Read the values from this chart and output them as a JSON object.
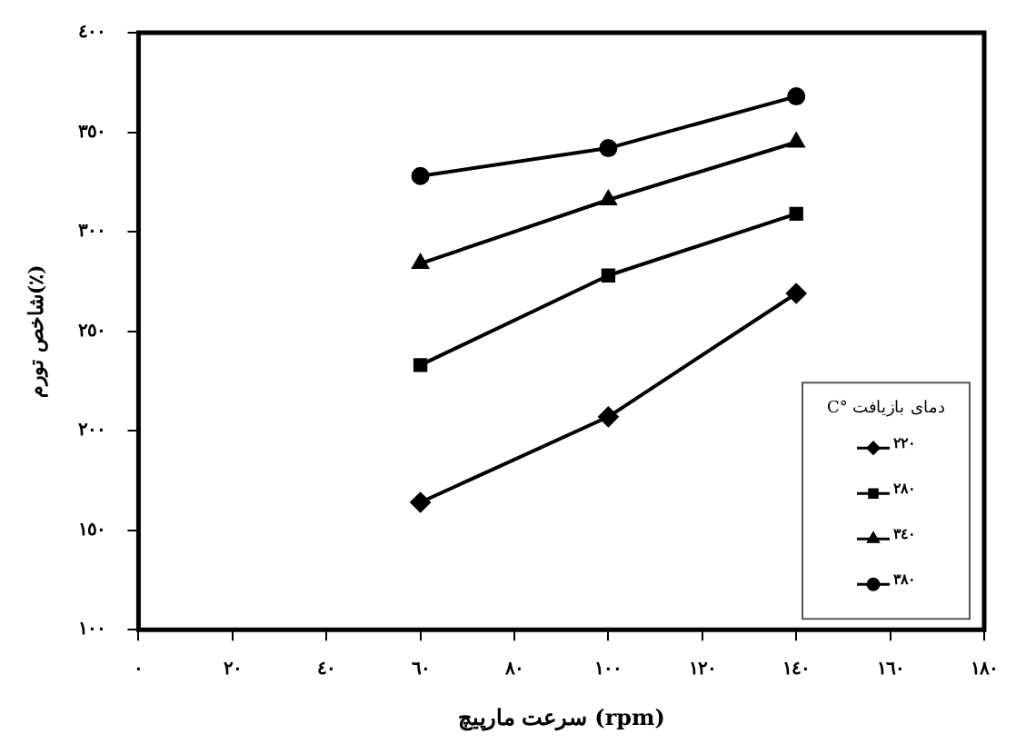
{
  "chart_data": {
    "type": "line",
    "xlabel": "سرعت مارپیچ (rpm)",
    "ylabel": "شاخص تورم(٪)",
    "legend_title": "دمای بازیافت °C",
    "legend": "bottom right",
    "grid": false,
    "x": [
      60,
      100,
      140
    ],
    "xlim": [
      0,
      180
    ],
    "xticks": [
      {
        "value": 0,
        "label": "٠"
      },
      {
        "value": 20,
        "label": "٢٠"
      },
      {
        "value": 40,
        "label": "٤٠"
      },
      {
        "value": 60,
        "label": "٦٠"
      },
      {
        "value": 80,
        "label": "٨٠"
      },
      {
        "value": 100,
        "label": "١٠٠"
      },
      {
        "value": 120,
        "label": "١٢٠"
      },
      {
        "value": 140,
        "label": "١٤٠"
      },
      {
        "value": 160,
        "label": "١٦٠"
      },
      {
        "value": 180,
        "label": "١٨٠"
      }
    ],
    "ylim": [
      100,
      400
    ],
    "yticks": [
      {
        "value": 100,
        "label": "١٠٠"
      },
      {
        "value": 150,
        "label": "١٥٠"
      },
      {
        "value": 200,
        "label": "٢٠٠"
      },
      {
        "value": 250,
        "label": "٢٥٠"
      },
      {
        "value": 300,
        "label": "٣٠٠"
      },
      {
        "value": 350,
        "label": "٣٥٠"
      },
      {
        "value": 400,
        "label": "٤٠٠"
      }
    ],
    "series": [
      {
        "name": "٢٢٠",
        "color": "#000000",
        "marker": "diamond",
        "values": [
          164,
          207,
          269
        ]
      },
      {
        "name": "٢٨٠",
        "color": "#000000",
        "marker": "square",
        "values": [
          233,
          278,
          309
        ]
      },
      {
        "name": "٣٤٠",
        "color": "#000000",
        "marker": "triangle",
        "values": [
          284,
          316,
          345
        ]
      },
      {
        "name": "٣٨٠",
        "color": "#000000",
        "marker": "circle",
        "values": [
          328,
          342,
          368
        ]
      }
    ]
  }
}
